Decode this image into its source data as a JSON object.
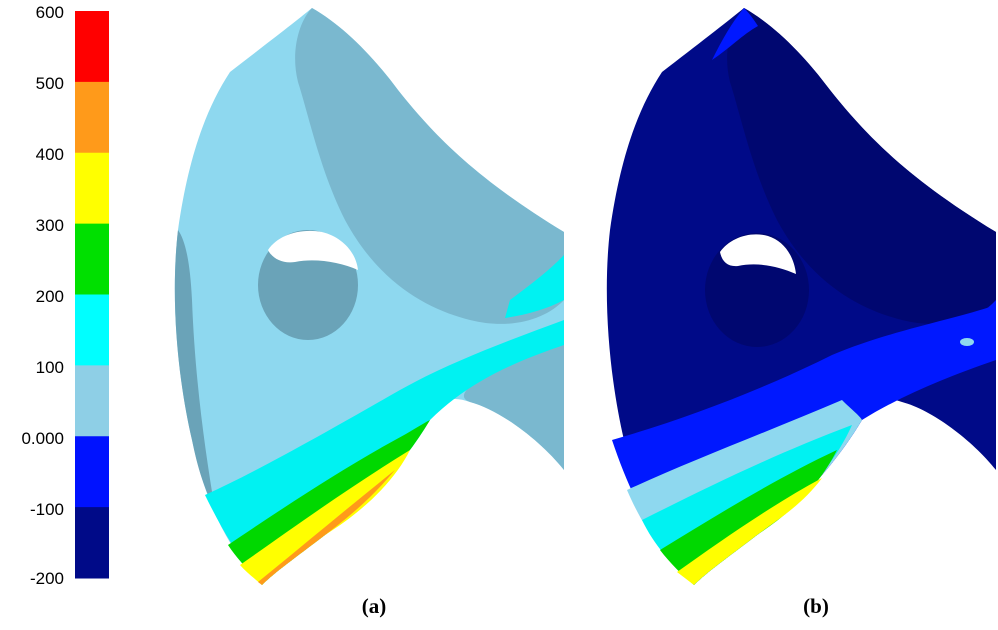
{
  "legend": {
    "ticks": [
      "600",
      "500",
      "400",
      "300",
      "200",
      "100",
      "0.000",
      "-100",
      "-200"
    ],
    "bands": [
      {
        "color": "#ff0000"
      },
      {
        "color": "#ff9a1a"
      },
      {
        "color": "#ffff00"
      },
      {
        "color": "#00e000"
      },
      {
        "color": "#00ffff"
      },
      {
        "color": "#8ecfe6"
      },
      {
        "color": "#0012ff"
      },
      {
        "color": "#000a88"
      }
    ]
  },
  "panels": [
    {
      "label": "(a)"
    },
    {
      "label": "(b)"
    }
  ]
}
